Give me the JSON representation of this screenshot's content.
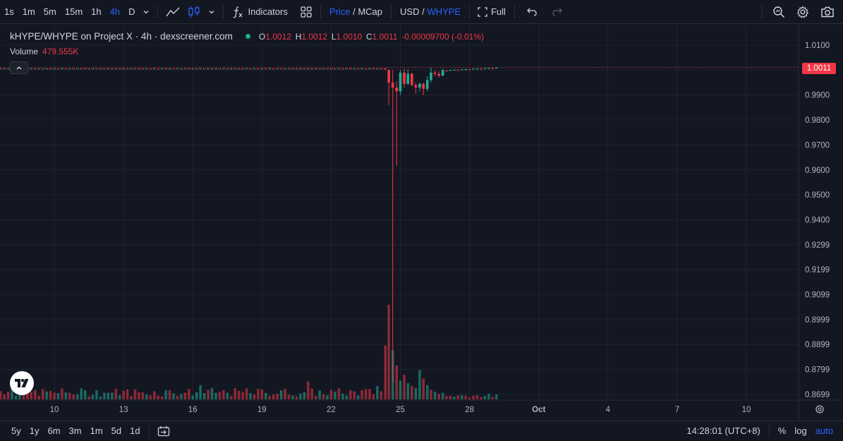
{
  "toolbar": {
    "intervals": [
      "1s",
      "1m",
      "5m",
      "15m",
      "1h",
      "4h",
      "D"
    ],
    "active_interval": "4h",
    "indicators_label": "Indicators",
    "price_label": "Price",
    "slash": " / ",
    "mcap_label": "MCap",
    "usd_label": "USD",
    "whype_label": "WHYPE",
    "full_label": "Full"
  },
  "legend": {
    "title": "kHYPE/WHYPE on Project X · 4h · dexscreener.com",
    "o_label": "O",
    "o_value": "1.0012",
    "h_label": "H",
    "h_value": "1.0012",
    "l_label": "L",
    "l_value": "1.0010",
    "c_label": "C",
    "c_value": "1.0011",
    "change": "-0.00009700 (-0.01%)",
    "volume_label": "Volume",
    "volume_value": "479.555K"
  },
  "price_badge": "1.0011",
  "colors": {
    "up": "#22ab94",
    "down": "#f23645",
    "accent": "#2962ff",
    "background": "#131722"
  },
  "chart_data": {
    "type": "candlestick",
    "y_ticks": [
      "1.0100",
      "1.0000",
      "0.9900",
      "0.9800",
      "0.9700",
      "0.9600",
      "0.9500",
      "0.9400",
      "0.9299",
      "0.9199",
      "0.9099",
      "0.8999",
      "0.8899",
      "0.8799",
      "0.8699"
    ],
    "x_ticks": [
      "10",
      "13",
      "16",
      "19",
      "22",
      "25",
      "28",
      "Oct",
      "4",
      "7",
      "10"
    ],
    "last_price": 1.0011,
    "approx_low": 0.8699,
    "volume_series": [
      {
        "t": 24.5,
        "v": 1.0,
        "dir": "down"
      },
      {
        "t": 24.35,
        "v": 0.57,
        "dir": "down"
      },
      {
        "t": 24.6,
        "v": 0.52,
        "dir": "up"
      },
      {
        "t": 24.8,
        "v": 0.36,
        "dir": "down"
      },
      {
        "t": 25.9,
        "v": 0.31,
        "dir": "up"
      }
    ]
  },
  "bottombar": {
    "ranges": [
      "5y",
      "1y",
      "6m",
      "3m",
      "1m",
      "5d",
      "1d"
    ],
    "time": "14:28:01 (UTC+8)",
    "percent_label": "%",
    "log_label": "log",
    "auto_label": "auto"
  }
}
